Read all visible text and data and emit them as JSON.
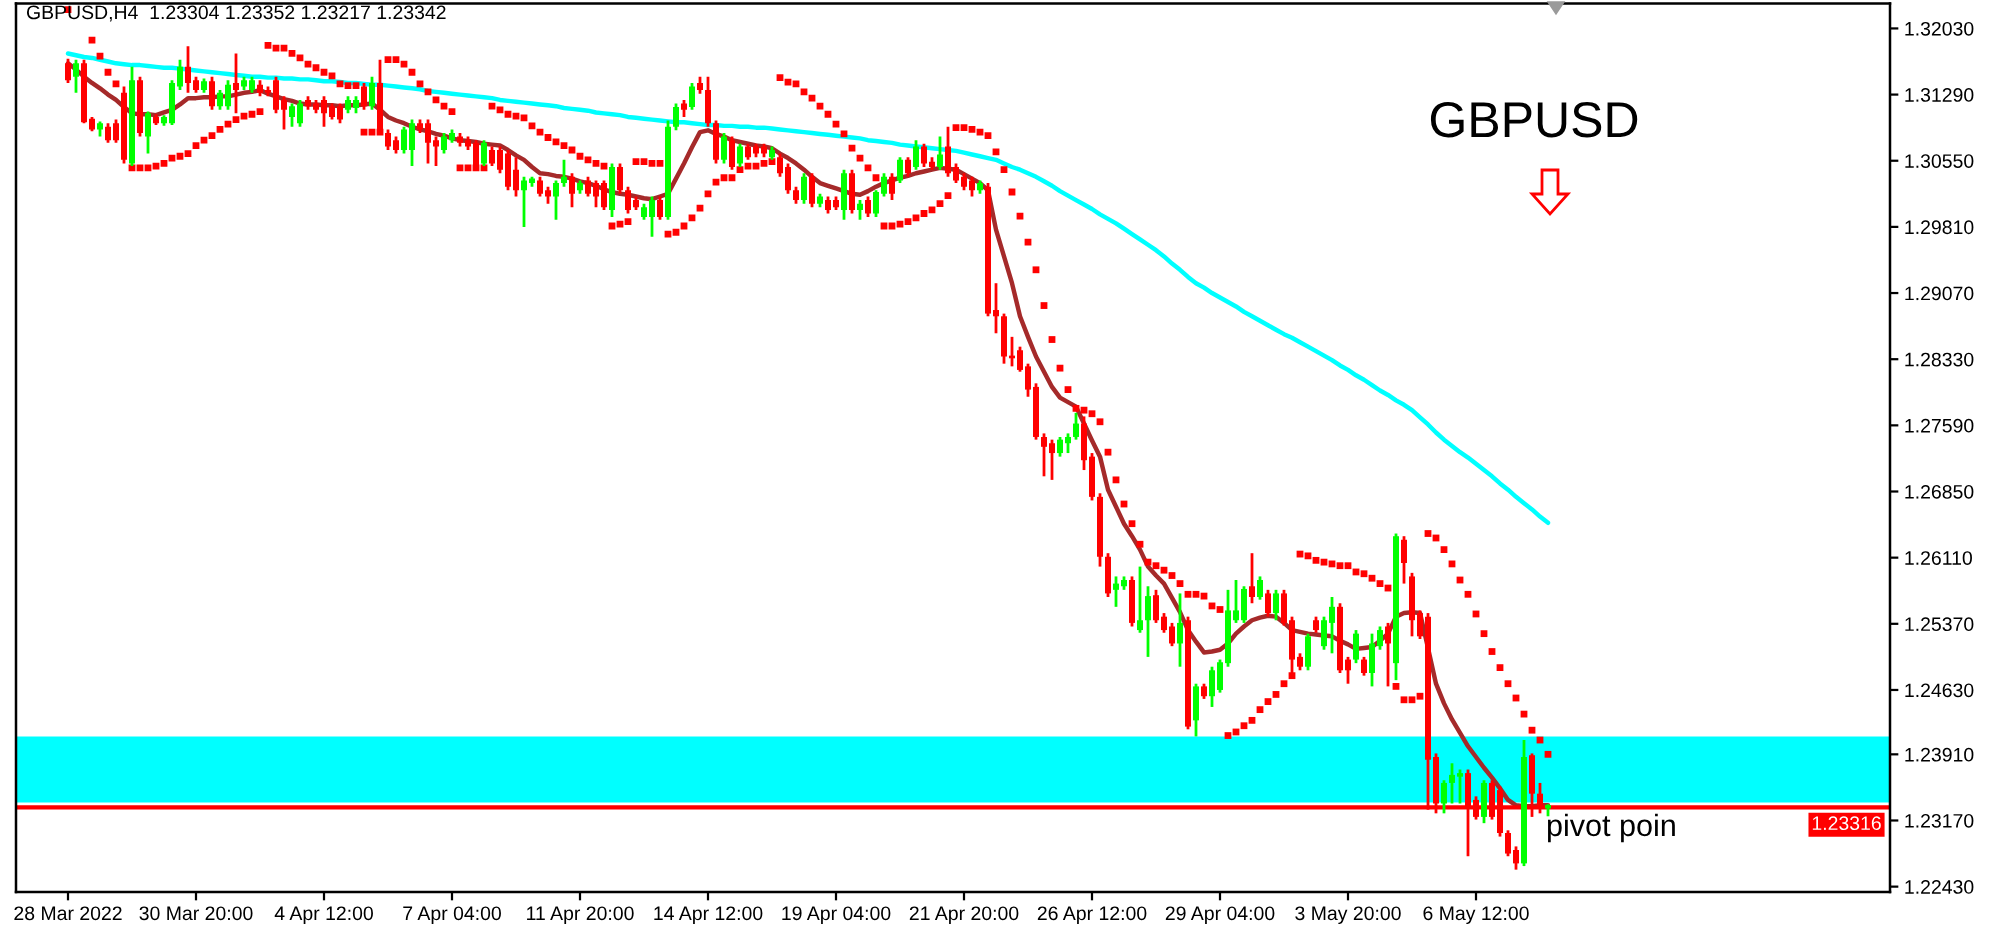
{
  "chart_data": {
    "type": "candlestick",
    "title": "GBPUSD,H4  1.23304 1.23352 1.23217 1.23342",
    "categories": [
      "28 Mar 2022",
      null,
      null,
      null,
      null,
      null,
      null,
      null,
      null,
      null,
      null,
      null,
      null,
      null,
      null,
      null,
      "30 Mar 20:00",
      null,
      null,
      null,
      null,
      null,
      null,
      null,
      null,
      null,
      null,
      null,
      null,
      null,
      null,
      null,
      "4 Apr 12:00",
      null,
      null,
      null,
      null,
      null,
      null,
      null,
      null,
      null,
      null,
      null,
      null,
      null,
      null,
      null,
      "7 Apr 04:00",
      null,
      null,
      null,
      null,
      null,
      null,
      null,
      null,
      null,
      null,
      null,
      null,
      null,
      null,
      null,
      "11 Apr 20:00",
      null,
      null,
      null,
      null,
      null,
      null,
      null,
      null,
      null,
      null,
      null,
      null,
      null,
      null,
      null,
      "14 Apr 12:00",
      null,
      null,
      null,
      null,
      null,
      null,
      null,
      null,
      null,
      null,
      null,
      null,
      null,
      null,
      null,
      "19 Apr 04:00",
      null,
      null,
      null,
      null,
      null,
      null,
      null,
      null,
      null,
      null,
      null,
      null,
      null,
      null,
      null,
      "21 Apr 20:00",
      null,
      null,
      null,
      null,
      null,
      null,
      null,
      null,
      null,
      null,
      null,
      null,
      null,
      null,
      null,
      "26 Apr 12:00",
      null,
      null,
      null,
      null,
      null,
      null,
      null,
      null,
      null,
      null,
      null,
      null,
      null,
      null,
      null,
      "29 Apr 04:00",
      null,
      null,
      null,
      null,
      null,
      null,
      null,
      null,
      null,
      null,
      null,
      null,
      null,
      null,
      null,
      "3 May 20:00",
      null,
      null,
      null,
      null,
      null,
      null,
      null,
      null,
      null,
      null,
      null,
      null,
      null,
      null,
      null,
      "6 May 12:00",
      null,
      null,
      null,
      null,
      null,
      null,
      null,
      null,
      null
    ],
    "ohlc": [
      [
        1.3164,
        1.3169,
        1.3142,
        1.3145
      ],
      [
        1.3149,
        1.3168,
        1.3131,
        1.3164
      ],
      [
        1.3164,
        1.3168,
        1.3097,
        1.3098
      ],
      [
        1.3102,
        1.3104,
        1.3088,
        1.309
      ],
      [
        1.309,
        1.3099,
        1.3082,
        1.3097
      ],
      [
        1.3093,
        1.3097,
        1.3075,
        1.3078
      ],
      [
        1.3097,
        1.3101,
        1.3075,
        1.3078
      ],
      [
        1.3131,
        1.3138,
        1.3052,
        1.3056
      ],
      [
        1.3052,
        1.316,
        1.3049,
        1.3145
      ],
      [
        1.3145,
        1.3149,
        1.3082,
        1.3086
      ],
      [
        1.3082,
        1.311,
        1.3063,
        1.3108
      ],
      [
        1.3104,
        1.3107,
        1.3095,
        1.3097
      ],
      [
        1.3097,
        1.3106,
        1.3094,
        1.3104
      ],
      [
        1.3097,
        1.3145,
        1.3095,
        1.3142
      ],
      [
        1.3138,
        1.3168,
        1.3134,
        1.316
      ],
      [
        1.316,
        1.3183,
        1.3131,
        1.3142
      ],
      [
        1.3145,
        1.3149,
        1.3131,
        1.3134
      ],
      [
        1.3134,
        1.3147,
        1.3131,
        1.3144
      ],
      [
        1.3144,
        1.3149,
        1.3112,
        1.3116
      ],
      [
        1.3116,
        1.3134,
        1.3112,
        1.3131
      ],
      [
        1.3116,
        1.3145,
        1.3112,
        1.314
      ],
      [
        1.3142,
        1.3175,
        1.3108,
        1.3134
      ],
      [
        1.3138,
        1.3149,
        1.3134,
        1.3145
      ],
      [
        1.3134,
        1.3149,
        1.3131,
        1.3145
      ],
      [
        1.314,
        1.3145,
        1.3127,
        1.3131
      ],
      [
        1.3134,
        1.3138,
        1.3127,
        1.3131
      ],
      [
        1.3145,
        1.3149,
        1.3108,
        1.3112
      ],
      [
        1.3123,
        1.3127,
        1.309,
        1.3112
      ],
      [
        1.3104,
        1.3119,
        1.3093,
        1.3116
      ],
      [
        1.3097,
        1.3123,
        1.3093,
        1.3119
      ],
      [
        1.3123,
        1.3127,
        1.3112,
        1.3116
      ],
      [
        1.3119,
        1.3123,
        1.3108,
        1.3112
      ],
      [
        1.3123,
        1.3127,
        1.3093,
        1.3108
      ],
      [
        1.3116,
        1.3119,
        1.3101,
        1.3104
      ],
      [
        1.3116,
        1.3119,
        1.3097,
        1.3101
      ],
      [
        1.3112,
        1.3127,
        1.3108,
        1.3123
      ],
      [
        1.3114,
        1.3127,
        1.3108,
        1.3123
      ],
      [
        1.3138,
        1.3142,
        1.3112,
        1.3116
      ],
      [
        1.3116,
        1.3149,
        1.3112,
        1.3142
      ],
      [
        1.3142,
        1.3168,
        1.3088,
        1.309
      ],
      [
        1.3086,
        1.309,
        1.3067,
        1.3071
      ],
      [
        1.3078,
        1.3082,
        1.3063,
        1.3067
      ],
      [
        1.3067,
        1.3093,
        1.3063,
        1.309
      ],
      [
        1.3067,
        1.3101,
        1.3049,
        1.3097
      ],
      [
        1.3097,
        1.3101,
        1.3086,
        1.309
      ],
      [
        1.3097,
        1.3101,
        1.3052,
        1.3075
      ],
      [
        1.3078,
        1.3082,
        1.3049,
        1.3071
      ],
      [
        1.3067,
        1.3086,
        1.3063,
        1.3082
      ],
      [
        1.3078,
        1.309,
        1.3075,
        1.3086
      ],
      [
        1.3082,
        1.3086,
        1.3071,
        1.3075
      ],
      [
        1.3078,
        1.3082,
        1.3067,
        1.3071
      ],
      [
        1.3075,
        1.3078,
        1.3048,
        1.3049
      ],
      [
        1.3052,
        1.3078,
        1.3049,
        1.3075
      ],
      [
        1.3067,
        1.3071,
        1.3049,
        1.3052
      ],
      [
        1.3067,
        1.3071,
        1.3041,
        1.3045
      ],
      [
        1.3063,
        1.3067,
        1.3022,
        1.3026
      ],
      [
        1.3045,
        1.3059,
        1.3015,
        1.3022
      ],
      [
        1.3022,
        1.3037,
        1.2981,
        1.3033
      ],
      [
        1.303,
        1.3037,
        1.3026,
        1.3035
      ],
      [
        1.3033,
        1.3037,
        1.3015,
        1.3018
      ],
      [
        1.3022,
        1.3026,
        1.3007,
        1.3015
      ],
      [
        1.3015,
        1.3033,
        1.2989,
        1.303
      ],
      [
        1.303,
        1.3056,
        1.3026,
        1.3037
      ],
      [
        1.3037,
        1.3041,
        1.3003,
        1.3018
      ],
      [
        1.3022,
        1.3033,
        1.3018,
        1.303
      ],
      [
        1.3033,
        1.3037,
        1.3015,
        1.3018
      ],
      [
        1.303,
        1.3033,
        1.3003,
        1.3015
      ],
      [
        1.303,
        1.3033,
        1.3,
        1.3003
      ],
      [
        1.3,
        1.3052,
        1.2992,
        1.3048
      ],
      [
        1.3048,
        1.3052,
        1.3018,
        1.3022
      ],
      [
        1.3022,
        1.3026,
        1.2996,
        1.3
      ],
      [
        1.3011,
        1.3015,
        1.3,
        1.3003
      ],
      [
        1.2992,
        1.3007,
        1.2989,
        1.3003
      ],
      [
        1.2992,
        1.3015,
        1.297,
        1.3011
      ],
      [
        1.3011,
        1.3015,
        1.2989,
        1.2992
      ],
      [
        1.2992,
        1.31,
        1.2989,
        1.3093
      ],
      [
        1.3093,
        1.3119,
        1.3089,
        1.3115
      ],
      [
        1.3119,
        1.3123,
        1.3104,
        1.3112
      ],
      [
        1.3115,
        1.3142,
        1.3112,
        1.3138
      ],
      [
        1.3142,
        1.3149,
        1.313,
        1.3134
      ],
      [
        1.3134,
        1.3149,
        1.3093,
        1.3097
      ],
      [
        1.3097,
        1.31,
        1.3052,
        1.3056
      ],
      [
        1.3056,
        1.3086,
        1.3052,
        1.3082
      ],
      [
        1.3078,
        1.3082,
        1.3045,
        1.3048
      ],
      [
        1.3052,
        1.3074,
        1.3048,
        1.3071
      ],
      [
        1.3071,
        1.3074,
        1.3056,
        1.3059
      ],
      [
        1.3071,
        1.3074,
        1.3059,
        1.3063
      ],
      [
        1.3071,
        1.3074,
        1.3059,
        1.3063
      ],
      [
        1.3059,
        1.3071,
        1.3056,
        1.3067
      ],
      [
        1.3059,
        1.3063,
        1.3037,
        1.3041
      ],
      [
        1.3048,
        1.3052,
        1.3018,
        1.3022
      ],
      [
        1.3022,
        1.3026,
        1.3007,
        1.3011
      ],
      [
        1.3011,
        1.3041,
        1.3007,
        1.3037
      ],
      [
        1.3037,
        1.3041,
        1.3003,
        1.3007
      ],
      [
        1.3007,
        1.3018,
        1.3003,
        1.3015
      ],
      [
        1.3011,
        1.3015,
        1.2996,
        1.3
      ],
      [
        1.3011,
        1.3015,
        1.3,
        1.3003
      ],
      [
        1.3,
        1.3045,
        1.2989,
        1.3041
      ],
      [
        1.3041,
        1.3045,
        1.2996,
        1.3
      ],
      [
        1.3,
        1.3011,
        1.2989,
        1.3007
      ],
      [
        1.3011,
        1.3015,
        1.2992,
        1.2996
      ],
      [
        1.2996,
        1.3022,
        1.2992,
        1.302
      ],
      [
        1.3018,
        1.3041,
        1.3015,
        1.3037
      ],
      [
        1.3037,
        1.3041,
        1.3011,
        1.3018
      ],
      [
        1.3033,
        1.3059,
        1.303,
        1.3056
      ],
      [
        1.3056,
        1.3059,
        1.3037,
        1.3041
      ],
      [
        1.3048,
        1.3078,
        1.3045,
        1.3071
      ],
      [
        1.3071,
        1.3074,
        1.3048,
        1.3052
      ],
      [
        1.3054,
        1.3059,
        1.3045,
        1.3048
      ],
      [
        1.3048,
        1.3082,
        1.3045,
        1.3062
      ],
      [
        1.3071,
        1.3093,
        1.3037,
        1.3041
      ],
      [
        1.3048,
        1.3052,
        1.303,
        1.3033
      ],
      [
        1.3037,
        1.3041,
        1.3022,
        1.3026
      ],
      [
        1.3033,
        1.3037,
        1.3015,
        1.3022
      ],
      [
        1.3022,
        1.3033,
        1.3018,
        1.303
      ],
      [
        1.3026,
        1.303,
        1.2881,
        1.2884
      ],
      [
        1.2888,
        1.2918,
        1.2862,
        1.2881
      ],
      [
        1.2881,
        1.2884,
        1.2828,
        1.2836
      ],
      [
        1.2837,
        1.2858,
        1.2825,
        1.2834
      ],
      [
        1.2843,
        1.2847,
        1.2819,
        1.2821
      ],
      [
        1.2825,
        1.2828,
        1.2791,
        1.2799
      ],
      [
        1.2802,
        1.2806,
        1.2743,
        1.2746
      ],
      [
        1.2746,
        1.275,
        1.2702,
        1.2735
      ],
      [
        1.2739,
        1.2743,
        1.2698,
        1.2728
      ],
      [
        1.2728,
        1.2746,
        1.2724,
        1.2743
      ],
      [
        1.2739,
        1.275,
        1.2728,
        1.2746
      ],
      [
        1.2746,
        1.2773,
        1.2743,
        1.2761
      ],
      [
        1.2761,
        1.2769,
        1.2709,
        1.272
      ],
      [
        1.2724,
        1.2728,
        1.2675,
        1.2679
      ],
      [
        1.2679,
        1.2683,
        1.2601,
        1.2612
      ],
      [
        1.2612,
        1.2616,
        1.2567,
        1.2571
      ],
      [
        1.2575,
        1.259,
        1.2556,
        1.2582
      ],
      [
        1.2579,
        1.259,
        1.2575,
        1.2586
      ],
      [
        1.2586,
        1.259,
        1.2534,
        1.2538
      ],
      [
        1.253,
        1.2601,
        1.2527,
        1.2541
      ],
      [
        1.2541,
        1.2579,
        1.25,
        1.2568
      ],
      [
        1.2569,
        1.2575,
        1.2538,
        1.2541
      ],
      [
        1.2545,
        1.2549,
        1.2527,
        1.253
      ],
      [
        1.2534,
        1.2538,
        1.2512,
        1.2515
      ],
      [
        1.2515,
        1.2571,
        1.2489,
        1.2538
      ],
      [
        1.2541,
        1.2545,
        1.2419,
        1.2422
      ],
      [
        1.2429,
        1.247,
        1.2411,
        1.2467
      ],
      [
        1.2467,
        1.247,
        1.2453,
        1.2456
      ],
      [
        1.2456,
        1.2489,
        1.2444,
        1.2485
      ],
      [
        1.2463,
        1.2497,
        1.246,
        1.2494
      ],
      [
        1.2493,
        1.2575,
        1.2489,
        1.2552
      ],
      [
        1.2541,
        1.2586,
        1.2538,
        1.2552
      ],
      [
        1.2541,
        1.2579,
        1.2538,
        1.2576
      ],
      [
        1.2579,
        1.2616,
        1.256,
        1.2567
      ],
      [
        1.2567,
        1.259,
        1.2564,
        1.2586
      ],
      [
        1.2571,
        1.2575,
        1.2545,
        1.2549
      ],
      [
        1.2549,
        1.2575,
        1.2541,
        1.2571
      ],
      [
        1.2571,
        1.2575,
        1.2535,
        1.2538
      ],
      [
        1.2541,
        1.2545,
        1.2482,
        1.2497
      ],
      [
        1.25,
        1.2504,
        1.2485,
        1.2489
      ],
      [
        1.2489,
        1.2526,
        1.2485,
        1.2523
      ],
      [
        1.2541,
        1.2545,
        1.2527,
        1.253
      ],
      [
        1.2512,
        1.2545,
        1.2508,
        1.2541
      ],
      [
        1.2538,
        1.2567,
        1.2504,
        1.2556
      ],
      [
        1.2556,
        1.256,
        1.2482,
        1.2485
      ],
      [
        1.2497,
        1.25,
        1.247,
        1.2485
      ],
      [
        1.2497,
        1.253,
        1.2493,
        1.2526
      ],
      [
        1.2497,
        1.25,
        1.2479,
        1.2482
      ],
      [
        1.2482,
        1.2526,
        1.2467,
        1.2515
      ],
      [
        1.2512,
        1.2534,
        1.2508,
        1.253
      ],
      [
        1.2534,
        1.2538,
        1.2467,
        1.2515
      ],
      [
        1.2493,
        1.2638,
        1.2474,
        1.2635
      ],
      [
        1.2631,
        1.2635,
        1.2582,
        1.2605
      ],
      [
        1.259,
        1.2594,
        1.2523,
        1.2541
      ],
      [
        1.2549,
        1.2552,
        1.252,
        1.2523
      ],
      [
        1.2545,
        1.2549,
        1.2329,
        1.2385
      ],
      [
        1.2388,
        1.2392,
        1.2325,
        1.2336
      ],
      [
        1.2336,
        1.2362,
        1.2325,
        1.2359
      ],
      [
        1.2359,
        1.2381,
        1.2336,
        1.2368
      ],
      [
        1.2366,
        1.2374,
        1.2336,
        1.237
      ],
      [
        1.237,
        1.2374,
        1.2277,
        1.2332
      ],
      [
        1.234,
        1.2344,
        1.2318,
        1.2321
      ],
      [
        1.2321,
        1.2362,
        1.2314,
        1.2359
      ],
      [
        1.2359,
        1.2362,
        1.2318,
        1.2321
      ],
      [
        1.2351,
        1.2355,
        1.2299,
        1.2303
      ],
      [
        1.2303,
        1.2306,
        1.2277,
        1.228
      ],
      [
        1.2284,
        1.2288,
        1.2262,
        1.2269
      ],
      [
        1.2269,
        1.2407,
        1.2266,
        1.2388
      ],
      [
        1.239,
        1.2392,
        1.2321,
        1.2347
      ],
      [
        1.2347,
        1.2359,
        1.2325,
        1.2332
      ],
      [
        1.23304,
        1.23352,
        1.23217,
        1.23342
      ]
    ],
    "colors": [
      "#ff0000",
      "#00ff00",
      "#ff0000",
      "#ff0000",
      "#00ff00",
      "#ff0000",
      "#ff0000",
      "#ff0000",
      "#00ff00",
      "#ff0000",
      "#00ff00",
      "#ff0000",
      "#00ff00",
      "#00ff00",
      "#00ff00",
      "#ff0000",
      "#ff0000",
      "#00ff00",
      "#ff0000",
      "#00ff00",
      "#00ff00",
      "#ff0000",
      "#00ff00",
      "#00ff00",
      "#ff0000",
      "#ff0000",
      "#ff0000",
      "#ff0000",
      "#00ff00",
      "#00ff00",
      "#ff0000",
      "#ff0000",
      "#ff0000",
      "#ff0000",
      "#ff0000",
      "#00ff00",
      "#00ff00",
      "#ff0000",
      "#00ff00",
      "#ff0000",
      "#ff0000",
      "#ff0000",
      "#00ff00",
      "#00ff00",
      "#ff0000",
      "#ff0000",
      "#ff0000",
      "#00ff00",
      "#00ff00",
      "#ff0000",
      "#ff0000",
      "#ff0000",
      "#00ff00",
      "#ff0000",
      "#ff0000",
      "#ff0000",
      "#ff0000",
      "#00ff00",
      "#00ff00",
      "#ff0000",
      "#ff0000",
      "#00ff00",
      "#00ff00",
      "#ff0000",
      "#00ff00",
      "#ff0000",
      "#ff0000",
      "#ff0000",
      "#00ff00",
      "#ff0000",
      "#ff0000",
      "#ff0000",
      "#00ff00",
      "#00ff00",
      "#ff0000",
      "#00ff00",
      "#00ff00",
      "#ff0000",
      "#00ff00",
      "#ff0000",
      "#ff0000",
      "#ff0000",
      "#00ff00",
      "#ff0000",
      "#00ff00",
      "#ff0000",
      "#ff0000",
      "#ff0000",
      "#00ff00",
      "#ff0000",
      "#ff0000",
      "#ff0000",
      "#00ff00",
      "#ff0000",
      "#00ff00",
      "#ff0000",
      "#ff0000",
      "#00ff00",
      "#ff0000",
      "#00ff00",
      "#ff0000",
      "#00ff00",
      "#00ff00",
      "#ff0000",
      "#00ff00",
      "#ff0000",
      "#00ff00",
      "#ff0000",
      "#ff0000",
      "#00ff00",
      "#ff0000",
      "#ff0000",
      "#ff0000",
      "#ff0000",
      "#00ff00",
      "#ff0000",
      "#ff0000",
      "#ff0000",
      "#ff0000",
      "#ff0000",
      "#ff0000",
      "#ff0000",
      "#ff0000",
      "#ff0000",
      "#00ff00",
      "#00ff00",
      "#00ff00",
      "#ff0000",
      "#ff0000",
      "#ff0000",
      "#ff0000",
      "#00ff00",
      "#00ff00",
      "#ff0000",
      "#00ff00",
      "#00ff00",
      "#ff0000",
      "#ff0000",
      "#ff0000",
      "#00ff00",
      "#ff0000",
      "#00ff00",
      "#ff0000",
      "#00ff00",
      "#00ff00",
      "#00ff00",
      "#00ff00",
      "#00ff00",
      "#ff0000",
      "#00ff00",
      "#ff0000",
      "#00ff00",
      "#ff0000",
      "#ff0000",
      "#ff0000",
      "#00ff00",
      "#ff0000",
      "#00ff00",
      "#00ff00",
      "#ff0000",
      "#ff0000",
      "#00ff00",
      "#ff0000",
      "#00ff00",
      "#00ff00",
      "#ff0000",
      "#00ff00",
      "#ff0000",
      "#ff0000",
      "#ff0000",
      "#ff0000",
      "#ff0000",
      "#00ff00",
      "#00ff00",
      "#00ff00",
      "#ff0000",
      "#ff0000",
      "#00ff00",
      "#ff0000",
      "#ff0000",
      "#ff0000",
      "#ff0000",
      "#00ff00",
      "#ff0000",
      "#ff0000",
      "#00ff00"
    ],
    "series": [
      {
        "type": "line",
        "color": "#a52a2a",
        "values": [
          1.3164,
          1.3157,
          1.3149,
          1.3142,
          1.3136,
          1.3129,
          1.3123,
          1.3115,
          1.3108,
          1.3107,
          1.3107,
          1.3106,
          1.3109,
          1.3112,
          1.3118,
          1.3125,
          1.3125,
          1.3126,
          1.3126,
          1.3127,
          1.3127,
          1.3129,
          1.3131,
          1.3132,
          1.3134,
          1.313,
          1.3127,
          1.3124,
          1.3122,
          1.3119,
          1.3118,
          1.3118,
          1.3117,
          1.3117,
          1.3116,
          1.3117,
          1.3117,
          1.3118,
          1.3119,
          1.3112,
          1.3104,
          1.31,
          1.3097,
          1.3093,
          1.309,
          1.3088,
          1.3085,
          1.3083,
          1.308,
          1.3078,
          1.3077,
          1.3076,
          1.3074,
          1.3073,
          1.3072,
          1.3067,
          1.3061,
          1.3056,
          1.3048,
          1.3041,
          1.304,
          1.3038,
          1.3037,
          1.3035,
          1.3032,
          1.303,
          1.3027,
          1.3023,
          1.302,
          1.3018,
          1.3017,
          1.3015,
          1.3013,
          1.3012,
          1.3015,
          1.3018,
          1.3035,
          1.3052,
          1.307,
          1.3087,
          1.3089,
          1.3085,
          1.3082,
          1.3078,
          1.3076,
          1.3074,
          1.3072,
          1.3071,
          1.3069,
          1.3063,
          1.3058,
          1.3052,
          1.3045,
          1.3037,
          1.303,
          1.3027,
          1.3024,
          1.3021,
          1.3018,
          1.3017,
          1.3021,
          1.3026,
          1.303,
          1.3033,
          1.3036,
          1.3038,
          1.3041,
          1.3043,
          1.3045,
          1.3047,
          1.3046,
          1.3045,
          1.304,
          1.3035,
          1.303,
          1.3022,
          1.2978,
          1.2948,
          1.2918,
          1.2881,
          1.2858,
          1.2836,
          1.2819,
          1.2802,
          1.279,
          1.2785,
          1.278,
          1.2761,
          1.2742,
          1.2724,
          1.2687,
          1.2668,
          1.2649,
          1.2635,
          1.262,
          1.2601,
          1.2591,
          1.2582,
          1.2566,
          1.255,
          1.253,
          1.2517,
          1.2505,
          1.2506,
          1.2508,
          1.2515,
          1.2526,
          1.2534,
          1.2541,
          1.2544,
          1.2546,
          1.2545,
          1.2538,
          1.253,
          1.2528,
          1.2526,
          1.2525,
          1.2524,
          1.2523,
          1.2518,
          1.2514,
          1.2509,
          1.251,
          1.2511,
          1.2518,
          1.2526,
          1.2545,
          1.2549,
          1.255,
          1.2549,
          1.251,
          1.247,
          1.2448,
          1.243,
          1.2415,
          1.24,
          1.2388,
          1.2376,
          1.2365,
          1.2353,
          1.234,
          1.2334,
          1.2333,
          1.2333,
          1.2334,
          1.2334
        ]
      },
      {
        "type": "line",
        "color": "#00ffff",
        "values": [
          1.3175,
          1.3173,
          1.3171,
          1.317,
          1.3168,
          1.3166,
          1.3164,
          1.3163,
          1.3162,
          1.3162,
          1.3161,
          1.316,
          1.3159,
          1.3159,
          1.3158,
          1.3157,
          1.3156,
          1.3155,
          1.3154,
          1.3153,
          1.3152,
          1.3151,
          1.315,
          1.3149,
          1.3149,
          1.3148,
          1.3148,
          1.3147,
          1.3147,
          1.3146,
          1.3146,
          1.3145,
          1.3144,
          1.3144,
          1.3143,
          1.3142,
          1.3142,
          1.3141,
          1.314,
          1.314,
          1.3139,
          1.3138,
          1.3137,
          1.3136,
          1.3135,
          1.3133,
          1.3132,
          1.3131,
          1.313,
          1.3129,
          1.3128,
          1.3127,
          1.3126,
          1.3125,
          1.3123,
          1.3122,
          1.3121,
          1.312,
          1.3119,
          1.3118,
          1.3117,
          1.3116,
          1.3114,
          1.3113,
          1.3112,
          1.3111,
          1.3109,
          1.3108,
          1.3107,
          1.3106,
          1.3104,
          1.3103,
          1.3102,
          1.3101,
          1.31,
          1.3099,
          1.3098,
          1.3098,
          1.3097,
          1.3096,
          1.3095,
          1.3095,
          1.3094,
          1.3094,
          1.3093,
          1.3093,
          1.3092,
          1.3092,
          1.3091,
          1.309,
          1.3089,
          1.3088,
          1.3087,
          1.3086,
          1.3085,
          1.3084,
          1.3083,
          1.3082,
          1.3081,
          1.308,
          1.3078,
          1.3077,
          1.3076,
          1.3075,
          1.3073,
          1.3072,
          1.3071,
          1.307,
          1.3069,
          1.3068,
          1.3067,
          1.3066,
          1.3064,
          1.3062,
          1.306,
          1.3058,
          1.3056,
          1.3052,
          1.3048,
          1.3045,
          1.3041,
          1.3037,
          1.3032,
          1.3027,
          1.3021,
          1.3016,
          1.3011,
          1.3006,
          1.3001,
          1.2995,
          1.299,
          1.2985,
          1.2979,
          1.2973,
          1.2967,
          1.2961,
          1.2955,
          1.2948,
          1.294,
          1.2933,
          1.2925,
          1.2918,
          1.2913,
          1.2907,
          1.2902,
          1.2897,
          1.2892,
          1.2886,
          1.2881,
          1.2876,
          1.2871,
          1.2866,
          1.2861,
          1.2857,
          1.2852,
          1.2847,
          1.2842,
          1.2837,
          1.2832,
          1.2826,
          1.2821,
          1.2815,
          1.281,
          1.2804,
          1.2798,
          1.2793,
          1.2787,
          1.2782,
          1.2776,
          1.2768,
          1.276,
          1.2751,
          1.2743,
          1.2736,
          1.2729,
          1.2723,
          1.2716,
          1.2709,
          1.2702,
          1.2694,
          1.2687,
          1.2679,
          1.2672,
          1.2665,
          1.2657,
          1.265
        ]
      },
      {
        "type": "scatter",
        "color": "#ff0000",
        "marker": "square",
        "values": [
          1.3224,
          null,
          null,
          1.319,
          1.3172,
          1.3154,
          1.3141,
          null,
          1.3047,
          1.3047,
          1.3047,
          1.3049,
          1.3052,
          1.3058,
          1.306,
          1.3063,
          1.3072,
          1.3078,
          1.3083,
          1.309,
          1.3096,
          1.3101,
          1.3105,
          1.3107,
          1.311,
          1.3184,
          1.3181,
          1.3181,
          1.3175,
          1.317,
          1.3163,
          1.3159,
          1.3154,
          1.315,
          1.3141,
          1.3139,
          1.3139,
          1.3087,
          1.3087,
          1.3087,
          1.3168,
          1.3168,
          1.3163,
          1.3154,
          1.3141,
          1.3132,
          1.3123,
          1.3116,
          1.311,
          1.3047,
          1.3047,
          1.3047,
          1.3047,
          1.3116,
          1.3112,
          1.3107,
          1.3105,
          1.3103,
          1.3094,
          1.3087,
          1.3081,
          1.3076,
          1.3072,
          1.3067,
          1.306,
          1.3056,
          1.3052,
          1.3049,
          1.2982,
          1.2984,
          1.2987,
          1.3054,
          1.3054,
          1.3052,
          1.3052,
          1.2973,
          1.2975,
          1.2982,
          1.2991,
          1.3002,
          1.3018,
          1.3031,
          1.3036,
          1.3036,
          1.3045,
          1.3049,
          1.3049,
          1.3052,
          1.3054,
          1.3148,
          1.3143,
          1.3141,
          1.3132,
          1.3125,
          1.3116,
          1.3107,
          1.3096,
          1.3085,
          1.3069,
          1.3058,
          1.3047,
          1.3036,
          1.2982,
          1.2982,
          1.2984,
          1.2987,
          1.2991,
          1.2996,
          1.3,
          1.3007,
          1.3016,
          1.3092,
          1.3092,
          1.309,
          1.3087,
          1.3083,
          1.3065,
          1.3045,
          1.302,
          1.2993,
          1.2964,
          1.2933,
          1.2893,
          1.2855,
          1.2823,
          1.2799,
          1.2778,
          1.2776,
          1.2772,
          1.2763,
          1.2729,
          1.2698,
          1.2671,
          1.2649,
          1.2626,
          1.2606,
          1.2602,
          1.2597,
          1.2591,
          1.2582,
          1.257,
          1.257,
          1.2568,
          1.2557,
          1.2553,
          1.2412,
          1.2416,
          1.2423,
          1.2429,
          1.2441,
          1.245,
          1.2458,
          1.247,
          1.2479,
          1.2615,
          1.2613,
          1.2608,
          1.2606,
          1.2604,
          1.2602,
          1.2602,
          1.2595,
          1.2593,
          1.2588,
          1.2582,
          1.2577,
          1.2467,
          1.2452,
          1.2452,
          1.2456,
          1.2638,
          1.2633,
          1.262,
          1.2604,
          1.2586,
          1.257,
          1.2548,
          1.2526,
          1.2506,
          1.2488,
          1.247,
          1.2454,
          1.2436,
          1.2418,
          1.2407,
          1.2391
        ]
      }
    ],
    "ylim": [
      1.2237,
      1.3231
    ],
    "yticks": [
      {
        "value": 1.3203,
        "label": "1.32030"
      },
      {
        "value": 1.3129,
        "label": "1.31290"
      },
      {
        "value": 1.3055,
        "label": "1.30550"
      },
      {
        "value": 1.2981,
        "label": "1.29810"
      },
      {
        "value": 1.2907,
        "label": "1.29070"
      },
      {
        "value": 1.2833,
        "label": "1.28330"
      },
      {
        "value": 1.2759,
        "label": "1.27590"
      },
      {
        "value": 1.2685,
        "label": "1.26850"
      },
      {
        "value": 1.2611,
        "label": "1.26110"
      },
      {
        "value": 1.2537,
        "label": "1.25370"
      },
      {
        "value": 1.2463,
        "label": "1.24630"
      },
      {
        "value": 1.2391,
        "label": "1.23910"
      },
      {
        "value": 1.2317,
        "label": "1.23170"
      },
      {
        "value": 1.2243,
        "label": "1.22430"
      }
    ],
    "ref_lines": [
      {
        "axis": "y",
        "value": 1.23316,
        "label": "1.23316",
        "color": "#ff0000"
      }
    ],
    "bands": [
      {
        "axis": "y",
        "from": 1.2337,
        "to": 1.2411,
        "color": "#00ffff"
      }
    ],
    "annotations": [
      "GBPUSD",
      "pivot poin"
    ]
  }
}
